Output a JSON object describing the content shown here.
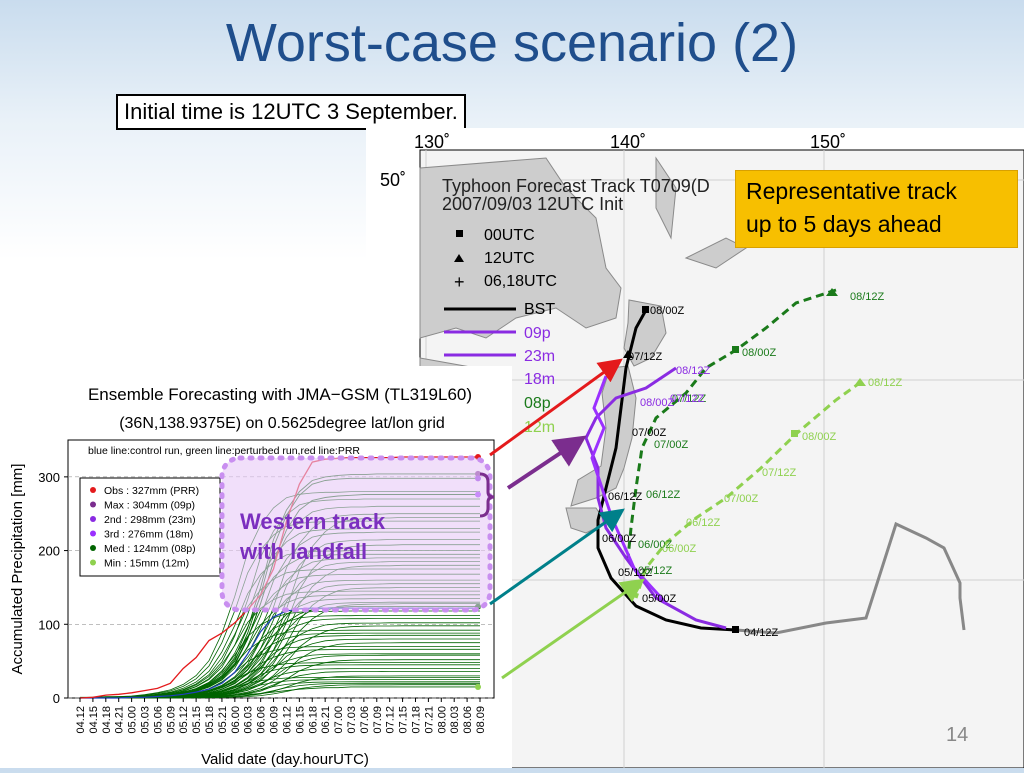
{
  "slide": {
    "title": "Worst-case scenario (2)",
    "initial_time": "Initial time is 12UTC 3 September.",
    "representative_track": "Representative track up to 5 days ahead",
    "representative_track_line1": "Representative track",
    "representative_track_line2": "up to 5 days ahead",
    "slide_number": "14",
    "western_track_line1": "Western track",
    "western_track_line2": "with landfall"
  },
  "map": {
    "title_line1": "Typhoon Forecast Track T0709(D",
    "title_line2": "2007/09/03 12UTC Init",
    "lon_labels": [
      "130˚",
      "140˚",
      "150˚"
    ],
    "lat_labels": [
      "50˚"
    ],
    "legend": [
      "00UTC",
      "12UTC",
      "06,18UTC",
      "BST",
      "09p",
      "23m",
      "18m",
      "08p",
      "12m"
    ],
    "legend_colors": [
      "#000000",
      "#000000",
      "#000000",
      "#000000",
      "#8a2be2",
      "#8a2be2",
      "#8a2be2",
      "#1a7a1a",
      "#8fd14f"
    ],
    "best_track_labels": [
      "08/00Z",
      "07/12Z",
      "07/00Z",
      "06/12Z",
      "06/00Z",
      "05/12Z",
      "05/00Z",
      "04/12Z"
    ],
    "dark_green_labels": [
      "08/12Z",
      "08/00Z",
      "07/12Z",
      "07/00Z",
      "06/12Z",
      "06/00Z",
      "05/12Z"
    ],
    "light_green_labels": [
      "08/12Z",
      "08/00Z",
      "07/12Z",
      "07/00Z",
      "06/12Z",
      "06/00Z"
    ],
    "purple_labels": [
      "08/12Z",
      "08/00Z",
      "07/12Z"
    ],
    "southeast_label": "08/12Z"
  },
  "chart_data": {
    "type": "line",
    "title": "Ensemble Forecasting with JMA−GSM (TL319L60)",
    "subtitle": "(36N,138.9375E) on 0.5625degree lat/lon grid",
    "note": "blue line:control run, green line:perturbed run,red line:PRR",
    "xlabel": "Valid date (day.hourUTC)",
    "ylabel": "Accumulated Precipitation [mm]",
    "ylim": [
      0,
      350
    ],
    "yticks": [
      0,
      100,
      200,
      300
    ],
    "categories": [
      "04.12",
      "04.15",
      "04.18",
      "04.21",
      "05.00",
      "05.03",
      "05.06",
      "05.09",
      "05.12",
      "05.15",
      "05.18",
      "05.21",
      "06.00",
      "06.03",
      "06.06",
      "06.09",
      "06.12",
      "06.15",
      "06.18",
      "06.21",
      "07.00",
      "07.03",
      "07.06",
      "07.09",
      "07.12",
      "07.15",
      "07.18",
      "07.21",
      "08.00",
      "08.03",
      "08.06",
      "08.09"
    ],
    "legend": [
      {
        "label": "Obs : 327mm (PRR)",
        "color": "#e41a1c",
        "value": 327
      },
      {
        "label": "Max : 304mm (09p)",
        "color": "#7b2d8e",
        "value": 304
      },
      {
        "label": "2nd : 298mm (23m)",
        "color": "#8a2be2",
        "value": 298
      },
      {
        "label": "3rd : 276mm (18m)",
        "color": "#9b30ff",
        "value": 276
      },
      {
        "label": "Med : 124mm (08p)",
        "color": "#006400",
        "value": 124
      },
      {
        "label": "Min : 15mm (12m)",
        "color": "#8fd14f",
        "value": 15
      }
    ],
    "series": [
      {
        "name": "Obs",
        "color": "#e41a1c",
        "values": [
          0,
          1,
          4,
          5,
          7,
          10,
          13,
          20,
          40,
          55,
          78,
          88,
          102,
          120,
          140,
          175,
          240,
          290,
          320,
          324,
          325,
          326,
          326,
          326,
          326,
          327,
          327,
          327,
          327,
          327,
          327,
          327
        ]
      },
      {
        "name": "09p",
        "color": "#006400",
        "values": [
          0,
          0,
          1,
          1,
          2,
          2,
          3,
          5,
          8,
          12,
          20,
          33,
          55,
          95,
          150,
          215,
          255,
          280,
          295,
          300,
          302,
          303,
          303,
          304,
          304,
          304,
          304,
          304,
          304,
          304,
          304,
          304
        ]
      },
      {
        "name": "23m",
        "color": "#006400",
        "values": [
          0,
          0,
          1,
          1,
          2,
          2,
          3,
          5,
          8,
          12,
          19,
          30,
          50,
          88,
          140,
          205,
          248,
          275,
          290,
          295,
          297,
          298,
          298,
          298,
          298,
          298,
          298,
          298,
          298,
          298,
          298,
          298
        ]
      },
      {
        "name": "18m",
        "color": "#006400",
        "values": [
          0,
          0,
          0,
          1,
          1,
          2,
          3,
          4,
          7,
          10,
          16,
          27,
          45,
          80,
          128,
          185,
          228,
          255,
          268,
          272,
          274,
          275,
          276,
          276,
          276,
          276,
          276,
          276,
          276,
          276,
          276,
          276
        ]
      },
      {
        "name": "08p",
        "color": "#006400",
        "values": [
          0,
          0,
          0,
          0,
          1,
          1,
          2,
          3,
          4,
          6,
          9,
          14,
          22,
          38,
          60,
          85,
          103,
          114,
          120,
          122,
          123,
          124,
          124,
          124,
          124,
          124,
          124,
          124,
          124,
          124,
          124,
          124
        ]
      },
      {
        "name": "12m",
        "color": "#006400",
        "values": [
          0,
          0,
          0,
          0,
          0,
          0,
          0,
          1,
          1,
          1,
          2,
          3,
          4,
          5,
          6,
          8,
          10,
          12,
          13,
          14,
          14,
          15,
          15,
          15,
          15,
          15,
          15,
          15,
          15,
          15,
          15,
          15
        ]
      },
      {
        "name": "control",
        "color": "#1f3fbf",
        "values": [
          0,
          0,
          0,
          0,
          1,
          1,
          2,
          3,
          5,
          8,
          12,
          20,
          35,
          60,
          90,
          110,
          118,
          121,
          122,
          122,
          122,
          122,
          122,
          122,
          122,
          122,
          122,
          122,
          122,
          122,
          122,
          122
        ]
      }
    ],
    "extra_finals": [
      280,
      270,
      260,
      250,
      245,
      240,
      230,
      225,
      215,
      208,
      200,
      195,
      190,
      185,
      180,
      175,
      168,
      160,
      155,
      150,
      145,
      140,
      135,
      130,
      128,
      118,
      112,
      108,
      102,
      98,
      92,
      88,
      85,
      80,
      75,
      70,
      66,
      60,
      58,
      52,
      48,
      45,
      40,
      36,
      30,
      28,
      25,
      22,
      20,
      18
    ]
  },
  "arrow_colors": {
    "obs": "#e41a1c",
    "max": "#7b2d8e",
    "med": "#00808a",
    "min": "#8fd14f",
    "landfall": "#c98ff0"
  }
}
